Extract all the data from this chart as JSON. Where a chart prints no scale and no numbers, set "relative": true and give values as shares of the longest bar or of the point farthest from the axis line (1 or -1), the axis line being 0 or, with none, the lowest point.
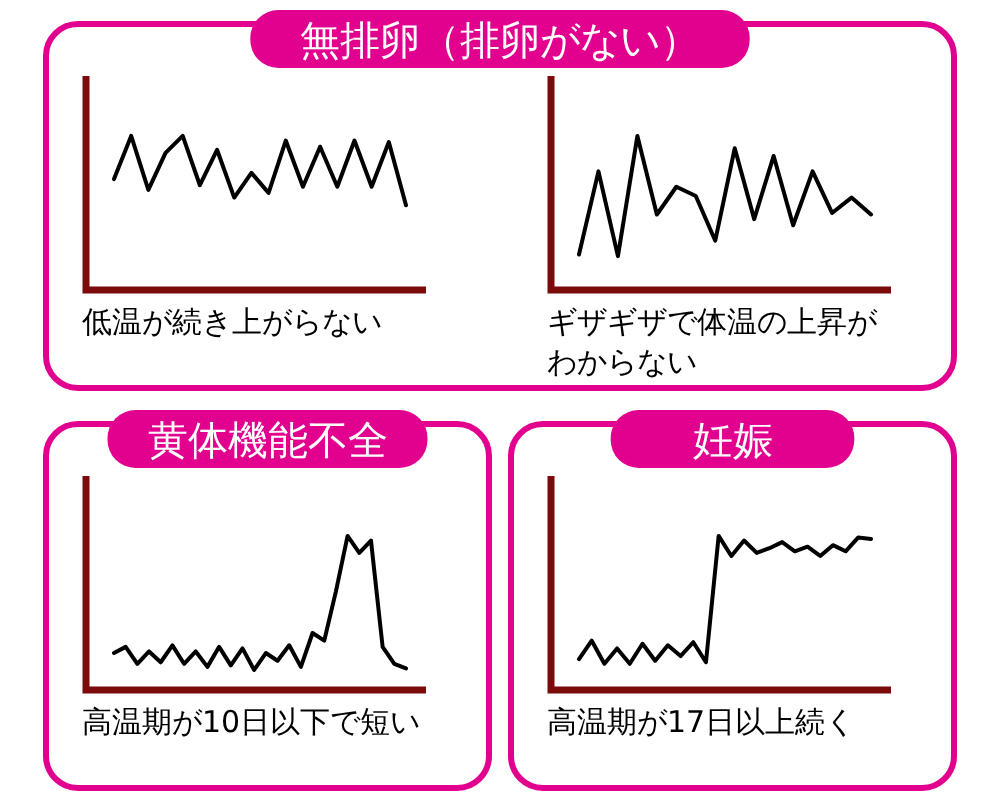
{
  "chart_data": [
    {
      "type": "line",
      "title": "無排卵（排卵がない）",
      "relative": true,
      "color": "#000000",
      "categories": [
        null,
        null,
        null,
        null,
        null,
        null,
        null,
        null,
        null,
        null,
        null,
        null,
        null,
        null,
        null,
        null,
        null,
        null
      ],
      "values": [
        0.72,
        1,
        0.65,
        0.89,
        1,
        0.68,
        0.91,
        0.6,
        0.76,
        0.63,
        0.97,
        0.67,
        0.93,
        0.67,
        0.97,
        0.67,
        0.96,
        0.55
      ],
      "annotations": [
        "低温が続き上がらない"
      ]
    },
    {
      "type": "line",
      "relative": true,
      "color": "#000000",
      "categories": [
        null,
        null,
        null,
        null,
        null,
        null,
        null,
        null,
        null,
        null,
        null,
        null,
        null,
        null,
        null,
        null
      ],
      "values": [
        0.23,
        0.77,
        0.22,
        1,
        0.49,
        0.67,
        0.61,
        0.32,
        0.92,
        0.46,
        0.87,
        0.42,
        0.77,
        0.5,
        0.6,
        0.49
      ],
      "annotations": [
        "ギザギザで体温の上昇がわからない"
      ]
    },
    {
      "type": "line",
      "title": "黄体機能不全",
      "relative": true,
      "color": "#000000",
      "categories": [
        null,
        null,
        null,
        null,
        null,
        null,
        null,
        null,
        null,
        null,
        null,
        null,
        null,
        null,
        null,
        null,
        null,
        null,
        null,
        null,
        null,
        null,
        null,
        null,
        null,
        null
      ],
      "values": [
        0.24,
        0.28,
        0.17,
        0.25,
        0.18,
        0.29,
        0.17,
        0.25,
        0.15,
        0.28,
        0.16,
        0.27,
        0.13,
        0.24,
        0.19,
        0.29,
        0.15,
        0.37,
        0.32,
        0.64,
        1,
        0.89,
        0.97,
        0.28,
        0.17,
        0.14
      ],
      "annotations": [
        "高温期が10日以下で短い"
      ]
    },
    {
      "type": "line",
      "title": "妊娠",
      "relative": true,
      "color": "#000000",
      "categories": [
        null,
        null,
        null,
        null,
        null,
        null,
        null,
        null,
        null,
        null,
        null,
        null,
        null,
        null,
        null,
        null,
        null,
        null,
        null,
        null,
        null,
        null,
        null,
        null
      ],
      "values": [
        0.2,
        0.32,
        0.17,
        0.27,
        0.17,
        0.3,
        0.19,
        0.29,
        0.22,
        0.31,
        0.18,
        1,
        0.87,
        0.97,
        0.89,
        0.92,
        0.96,
        0.9,
        0.93,
        0.87,
        0.94,
        0.9,
        0.99,
        0.98
      ],
      "annotations": [
        "高温期が17日以上続く"
      ]
    }
  ]
}
